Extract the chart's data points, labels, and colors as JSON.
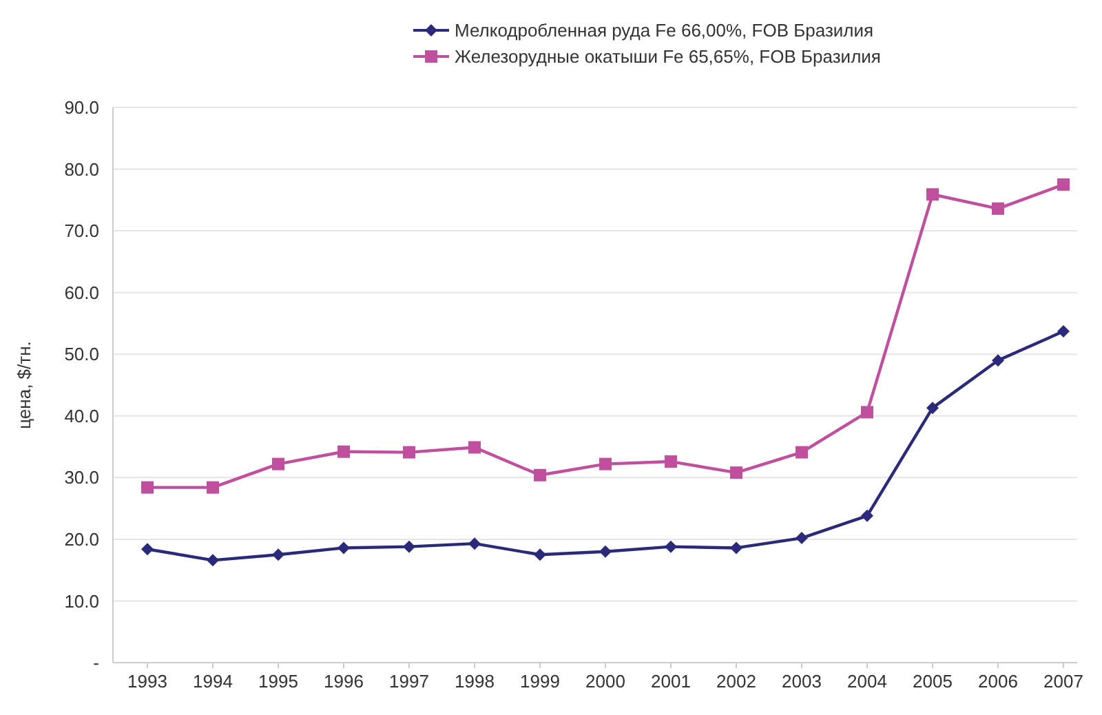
{
  "chart_data": {
    "type": "line",
    "ylabel": "цена, $/тн.",
    "categories": [
      "1993",
      "1994",
      "1995",
      "1996",
      "1997",
      "1998",
      "1999",
      "2000",
      "2001",
      "2002",
      "2003",
      "2004",
      "2005",
      "2006",
      "2007"
    ],
    "series": [
      {
        "name": "Мелкодробленная руда Fe 66,00%, FOB Бразилия",
        "color": "#2b2a7a",
        "marker": "diamond",
        "values": [
          18.4,
          16.6,
          17.5,
          18.6,
          18.8,
          19.3,
          17.5,
          18.0,
          18.8,
          18.6,
          20.2,
          23.8,
          41.3,
          49.0,
          53.7
        ]
      },
      {
        "name": "Железорудные окатыши Fe 65,65%, FOB Бразилия",
        "color": "#c0509e",
        "marker": "square",
        "values": [
          28.4,
          28.4,
          32.2,
          34.2,
          34.1,
          34.9,
          30.4,
          32.2,
          32.6,
          30.8,
          34.1,
          40.6,
          75.9,
          73.6,
          77.5
        ]
      }
    ],
    "ylim": [
      0,
      90
    ],
    "yticks": [
      {
        "value": 0,
        "label": "-"
      },
      {
        "value": 10,
        "label": "10.0"
      },
      {
        "value": 20,
        "label": "20.0"
      },
      {
        "value": 30,
        "label": "30.0"
      },
      {
        "value": 40,
        "label": "40.0"
      },
      {
        "value": 50,
        "label": "50.0"
      },
      {
        "value": 60,
        "label": "60.0"
      },
      {
        "value": 70,
        "label": "70.0"
      },
      {
        "value": 80,
        "label": "80.0"
      },
      {
        "value": 90,
        "label": "90.0"
      }
    ],
    "grid": "y",
    "legend": "top",
    "line_style": "solid"
  }
}
